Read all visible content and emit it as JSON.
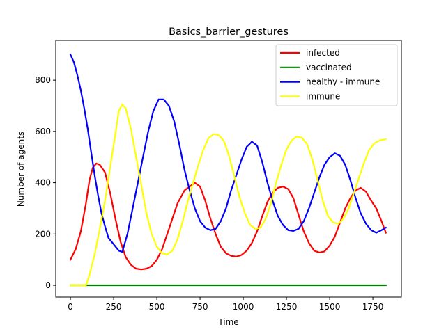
{
  "chart_data": {
    "type": "line",
    "title": "Basics_barrier_gestures",
    "xlabel": "Time",
    "ylabel": "Number of agents",
    "xlim": [
      -85,
      1915
    ],
    "ylim": [
      -46,
      955
    ],
    "xticks": [
      0,
      250,
      500,
      750,
      1000,
      1250,
      1500,
      1750
    ],
    "yticks": [
      0,
      200,
      400,
      600,
      800
    ],
    "grid": false,
    "legend_position": "upper right",
    "series": [
      {
        "name": "infected",
        "color": "#ff0000",
        "points": [
          [
            0,
            100
          ],
          [
            30,
            140
          ],
          [
            60,
            210
          ],
          [
            90,
            320
          ],
          [
            110,
            410
          ],
          [
            130,
            460
          ],
          [
            150,
            475
          ],
          [
            170,
            470
          ],
          [
            200,
            440
          ],
          [
            230,
            360
          ],
          [
            260,
            260
          ],
          [
            290,
            170
          ],
          [
            320,
            110
          ],
          [
            350,
            80
          ],
          [
            380,
            65
          ],
          [
            410,
            62
          ],
          [
            440,
            65
          ],
          [
            470,
            75
          ],
          [
            500,
            100
          ],
          [
            530,
            140
          ],
          [
            560,
            200
          ],
          [
            590,
            260
          ],
          [
            620,
            320
          ],
          [
            660,
            370
          ],
          [
            690,
            385
          ],
          [
            720,
            400
          ],
          [
            750,
            385
          ],
          [
            780,
            330
          ],
          [
            810,
            260
          ],
          [
            840,
            200
          ],
          [
            870,
            150
          ],
          [
            900,
            125
          ],
          [
            930,
            115
          ],
          [
            960,
            112
          ],
          [
            990,
            118
          ],
          [
            1020,
            135
          ],
          [
            1050,
            165
          ],
          [
            1080,
            210
          ],
          [
            1110,
            270
          ],
          [
            1140,
            325
          ],
          [
            1170,
            360
          ],
          [
            1200,
            380
          ],
          [
            1230,
            385
          ],
          [
            1260,
            375
          ],
          [
            1290,
            340
          ],
          [
            1320,
            275
          ],
          [
            1350,
            210
          ],
          [
            1380,
            165
          ],
          [
            1410,
            135
          ],
          [
            1440,
            128
          ],
          [
            1470,
            132
          ],
          [
            1500,
            155
          ],
          [
            1530,
            190
          ],
          [
            1560,
            245
          ],
          [
            1590,
            300
          ],
          [
            1620,
            340
          ],
          [
            1650,
            370
          ],
          [
            1680,
            380
          ],
          [
            1710,
            365
          ],
          [
            1740,
            330
          ],
          [
            1770,
            300
          ],
          [
            1800,
            250
          ],
          [
            1825,
            205
          ]
        ]
      },
      {
        "name": "vaccinated",
        "color": "#008000",
        "points": [
          [
            0,
            0
          ],
          [
            1825,
            0
          ]
        ]
      },
      {
        "name": "healthy - immune",
        "color": "#0000ff",
        "points": [
          [
            0,
            900
          ],
          [
            20,
            870
          ],
          [
            40,
            820
          ],
          [
            60,
            760
          ],
          [
            80,
            690
          ],
          [
            100,
            610
          ],
          [
            120,
            520
          ],
          [
            140,
            430
          ],
          [
            160,
            350
          ],
          [
            180,
            280
          ],
          [
            200,
            230
          ],
          [
            220,
            185
          ],
          [
            250,
            160
          ],
          [
            280,
            135
          ],
          [
            300,
            130
          ],
          [
            330,
            200
          ],
          [
            360,
            300
          ],
          [
            390,
            400
          ],
          [
            420,
            500
          ],
          [
            450,
            600
          ],
          [
            480,
            680
          ],
          [
            510,
            725
          ],
          [
            540,
            725
          ],
          [
            570,
            700
          ],
          [
            600,
            640
          ],
          [
            630,
            550
          ],
          [
            660,
            450
          ],
          [
            690,
            370
          ],
          [
            720,
            300
          ],
          [
            750,
            250
          ],
          [
            780,
            225
          ],
          [
            810,
            215
          ],
          [
            840,
            220
          ],
          [
            870,
            250
          ],
          [
            900,
            300
          ],
          [
            930,
            370
          ],
          [
            960,
            430
          ],
          [
            990,
            490
          ],
          [
            1020,
            540
          ],
          [
            1050,
            560
          ],
          [
            1080,
            545
          ],
          [
            1110,
            480
          ],
          [
            1140,
            400
          ],
          [
            1170,
            330
          ],
          [
            1200,
            270
          ],
          [
            1230,
            235
          ],
          [
            1260,
            215
          ],
          [
            1290,
            212
          ],
          [
            1320,
            220
          ],
          [
            1350,
            250
          ],
          [
            1380,
            300
          ],
          [
            1410,
            360
          ],
          [
            1440,
            420
          ],
          [
            1470,
            470
          ],
          [
            1500,
            500
          ],
          [
            1530,
            515
          ],
          [
            1560,
            505
          ],
          [
            1590,
            470
          ],
          [
            1620,
            410
          ],
          [
            1650,
            340
          ],
          [
            1680,
            280
          ],
          [
            1710,
            240
          ],
          [
            1740,
            215
          ],
          [
            1770,
            205
          ],
          [
            1800,
            215
          ],
          [
            1825,
            225
          ]
        ]
      },
      {
        "name": "immune",
        "color": "#ffff00",
        "points": [
          [
            0,
            0
          ],
          [
            90,
            0
          ],
          [
            110,
            40
          ],
          [
            140,
            120
          ],
          [
            170,
            220
          ],
          [
            200,
            330
          ],
          [
            230,
            460
          ],
          [
            260,
            590
          ],
          [
            280,
            680
          ],
          [
            300,
            705
          ],
          [
            320,
            690
          ],
          [
            350,
            610
          ],
          [
            380,
            500
          ],
          [
            410,
            390
          ],
          [
            440,
            280
          ],
          [
            470,
            200
          ],
          [
            500,
            150
          ],
          [
            530,
            125
          ],
          [
            560,
            120
          ],
          [
            590,
            135
          ],
          [
            620,
            180
          ],
          [
            650,
            250
          ],
          [
            680,
            330
          ],
          [
            710,
            400
          ],
          [
            740,
            470
          ],
          [
            770,
            530
          ],
          [
            800,
            575
          ],
          [
            830,
            590
          ],
          [
            860,
            585
          ],
          [
            890,
            560
          ],
          [
            920,
            500
          ],
          [
            950,
            420
          ],
          [
            980,
            340
          ],
          [
            1010,
            280
          ],
          [
            1040,
            235
          ],
          [
            1070,
            220
          ],
          [
            1100,
            225
          ],
          [
            1130,
            260
          ],
          [
            1160,
            320
          ],
          [
            1190,
            400
          ],
          [
            1220,
            470
          ],
          [
            1250,
            530
          ],
          [
            1280,
            565
          ],
          [
            1310,
            580
          ],
          [
            1340,
            575
          ],
          [
            1370,
            550
          ],
          [
            1400,
            490
          ],
          [
            1430,
            410
          ],
          [
            1460,
            330
          ],
          [
            1490,
            270
          ],
          [
            1520,
            245
          ],
          [
            1550,
            240
          ],
          [
            1580,
            260
          ],
          [
            1610,
            300
          ],
          [
            1640,
            360
          ],
          [
            1670,
            420
          ],
          [
            1700,
            480
          ],
          [
            1730,
            530
          ],
          [
            1760,
            555
          ],
          [
            1790,
            565
          ],
          [
            1825,
            570
          ]
        ]
      }
    ]
  }
}
